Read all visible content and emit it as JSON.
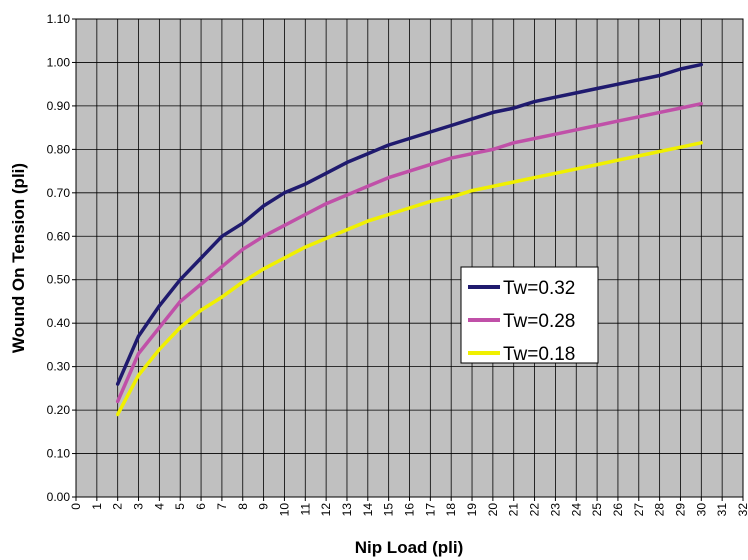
{
  "chart_data": {
    "type": "line",
    "title": "",
    "xlabel": "Nip Load (pli)",
    "ylabel": "Wound On Tension (pli)",
    "xlim": [
      0,
      32
    ],
    "ylim": [
      0,
      1.1
    ],
    "x_ticks": [
      "0",
      "1",
      "2",
      "3",
      "4",
      "5",
      "6",
      "7",
      "8",
      "9",
      "10",
      "11",
      "12",
      "13",
      "14",
      "15",
      "16",
      "17",
      "18",
      "19",
      "20",
      "21",
      "22",
      "23",
      "24",
      "25",
      "26",
      "27",
      "28",
      "29",
      "30",
      "31",
      "32"
    ],
    "y_ticks": [
      "0.00",
      "0.10",
      "0.20",
      "0.30",
      "0.40",
      "0.50",
      "0.60",
      "0.70",
      "0.80",
      "0.90",
      "1.00",
      "1.10"
    ],
    "grid": true,
    "legend_position": "center-right",
    "plot_background": "#c0c0c0",
    "x": [
      2,
      3,
      4,
      5,
      6,
      7,
      8,
      9,
      10,
      11,
      12,
      13,
      14,
      15,
      16,
      17,
      18,
      19,
      20,
      21,
      22,
      23,
      24,
      25,
      26,
      27,
      28,
      29,
      30
    ],
    "series": [
      {
        "name": "Tw=0.32",
        "color": "#1f1a6e",
        "values": [
          0.26,
          0.37,
          0.44,
          0.5,
          0.55,
          0.6,
          0.63,
          0.67,
          0.7,
          0.72,
          0.745,
          0.77,
          0.79,
          0.81,
          0.825,
          0.84,
          0.855,
          0.87,
          0.885,
          0.895,
          0.91,
          0.92,
          0.93,
          0.94,
          0.95,
          0.96,
          0.97,
          0.985,
          0.995
        ]
      },
      {
        "name": "Tw=0.28",
        "color": "#c050a8",
        "values": [
          0.22,
          0.33,
          0.39,
          0.45,
          0.49,
          0.53,
          0.57,
          0.6,
          0.625,
          0.65,
          0.675,
          0.695,
          0.715,
          0.735,
          0.75,
          0.765,
          0.78,
          0.79,
          0.8,
          0.815,
          0.825,
          0.835,
          0.845,
          0.855,
          0.865,
          0.875,
          0.885,
          0.895,
          0.905
        ]
      },
      {
        "name": "Tw=0.18",
        "color": "#f0f000",
        "values": [
          0.19,
          0.28,
          0.34,
          0.39,
          0.43,
          0.46,
          0.495,
          0.525,
          0.55,
          0.575,
          0.595,
          0.615,
          0.635,
          0.65,
          0.665,
          0.68,
          0.69,
          0.705,
          0.715,
          0.725,
          0.735,
          0.745,
          0.755,
          0.765,
          0.775,
          0.785,
          0.795,
          0.805,
          0.815
        ]
      }
    ]
  }
}
